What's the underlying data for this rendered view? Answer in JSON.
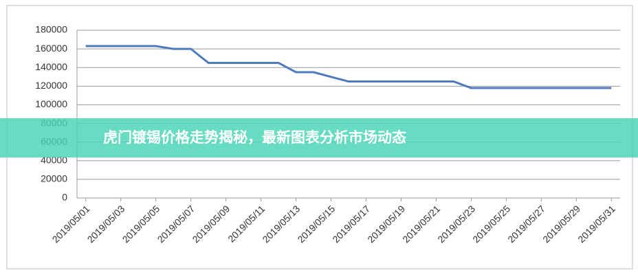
{
  "chart_data": {
    "type": "line",
    "annotation": "虎门镀锡价格走势揭秘，最新图表分析市场动态",
    "categories": [
      "2019/05/01",
      null,
      "2019/05/03",
      null,
      "2019/05/05",
      null,
      "2019/05/07",
      null,
      "2019/05/09",
      null,
      "2019/05/11",
      null,
      "2019/05/13",
      null,
      "2019/05/15",
      null,
      "2019/05/17",
      null,
      "2019/05/19",
      null,
      "2019/05/21",
      null,
      "2019/05/23",
      null,
      "2019/05/25",
      null,
      "2019/05/27",
      null,
      "2019/05/29",
      null,
      "2019/05/31"
    ],
    "values": [
      163000,
      163000,
      163000,
      163000,
      163000,
      160000,
      160000,
      145000,
      145000,
      145000,
      145000,
      145000,
      135000,
      135000,
      130000,
      125000,
      125000,
      125000,
      125000,
      125000,
      125000,
      125000,
      118000,
      118000,
      118000,
      118000,
      118000,
      118000,
      118000,
      118000,
      118000
    ],
    "color": "#4f79bd",
    "ylim": [
      0,
      180000
    ],
    "yticks": [
      0,
      20000,
      40000,
      60000,
      80000,
      100000,
      120000,
      140000,
      160000,
      180000
    ],
    "grid": true
  }
}
